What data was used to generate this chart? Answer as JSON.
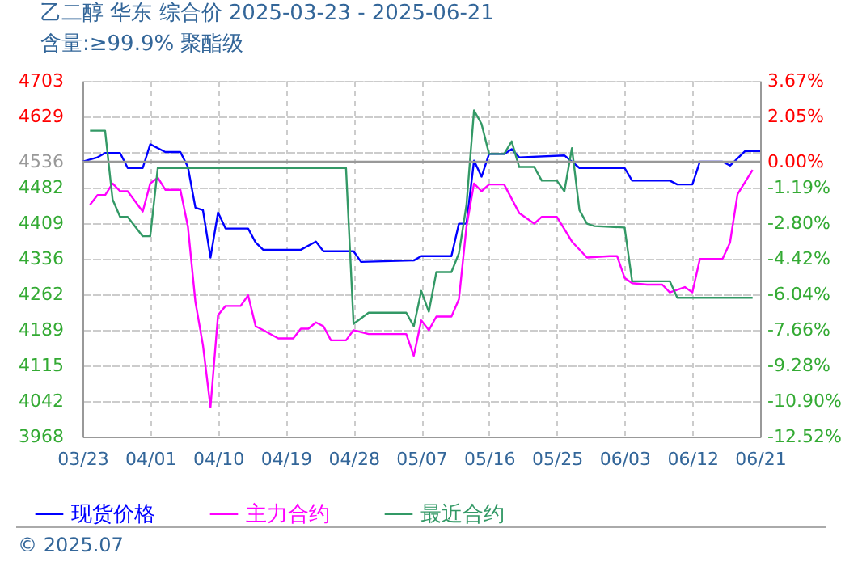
{
  "chart_data": {
    "type": "line",
    "title": "乙二醇 华东 综合价 2025-03-23 - 2025-06-21",
    "subtitle": "含量:≥99.9% 聚酯级",
    "series": [
      {
        "name": "现货价格",
        "color": "#0000ff",
        "x": [
          "2025-03-23",
          "2025-03-25",
          "2025-03-26",
          "2025-03-28",
          "2025-03-29",
          "2025-03-31",
          "2025-04-01",
          "2025-04-03",
          "2025-04-05",
          "2025-04-06",
          "2025-04-07",
          "2025-04-08",
          "2025-04-09",
          "2025-04-10",
          "2025-04-11",
          "2025-04-14",
          "2025-04-15",
          "2025-04-16",
          "2025-04-21",
          "2025-04-23",
          "2025-04-24",
          "2025-04-28",
          "2025-04-29",
          "2025-05-06",
          "2025-05-07",
          "2025-05-11",
          "2025-05-12",
          "2025-05-13",
          "2025-05-14",
          "2025-05-15",
          "2025-05-16",
          "2025-05-18",
          "2025-05-19",
          "2025-05-20",
          "2025-05-26",
          "2025-05-28",
          "2025-06-03",
          "2025-06-04",
          "2025-06-09",
          "2025-06-10",
          "2025-06-12",
          "2025-06-13",
          "2025-06-16",
          "2025-06-17",
          "2025-06-19",
          "2025-06-21"
        ],
        "values": [
          4536,
          4545,
          4554,
          4554,
          4523,
          4523,
          4572,
          4556,
          4556,
          4525,
          4441,
          4436,
          4338,
          4431,
          4398,
          4398,
          4369,
          4354,
          4354,
          4371,
          4351,
          4351,
          4329,
          4332,
          4341,
          4341,
          4408,
          4408,
          4538,
          4505,
          4552,
          4552,
          4562,
          4545,
          4549,
          4523,
          4523,
          4497,
          4497,
          4489,
          4489,
          4536,
          4536,
          4528,
          4558,
          4558
        ]
      },
      {
        "name": "主力合约",
        "color": "#ff00ff",
        "x": [
          "2025-03-24",
          "2025-03-25",
          "2025-03-26",
          "2025-03-27",
          "2025-03-28",
          "2025-03-29",
          "2025-03-31",
          "2025-04-01",
          "2025-04-02",
          "2025-04-03",
          "2025-04-05",
          "2025-04-06",
          "2025-04-07",
          "2025-04-08",
          "2025-04-09",
          "2025-04-10",
          "2025-04-11",
          "2025-04-13",
          "2025-04-14",
          "2025-04-15",
          "2025-04-16",
          "2025-04-18",
          "2025-04-20",
          "2025-04-21",
          "2025-04-22",
          "2025-04-23",
          "2025-04-24",
          "2025-04-25",
          "2025-04-27",
          "2025-04-28",
          "2025-04-30",
          "2025-05-05",
          "2025-05-06",
          "2025-05-07",
          "2025-05-08",
          "2025-05-09",
          "2025-05-11",
          "2025-05-12",
          "2025-05-13",
          "2025-05-14",
          "2025-05-15",
          "2025-05-16",
          "2025-05-18",
          "2025-05-20",
          "2025-05-22",
          "2025-05-23",
          "2025-05-25",
          "2025-05-27",
          "2025-05-29",
          "2025-06-01",
          "2025-06-02",
          "2025-06-03",
          "2025-06-04",
          "2025-06-06",
          "2025-06-08",
          "2025-06-09",
          "2025-06-11",
          "2025-06-12",
          "2025-06-13",
          "2025-06-16",
          "2025-06-17",
          "2025-06-18",
          "2025-06-20"
        ],
        "values": [
          4447,
          4467,
          4467,
          4491,
          4475,
          4475,
          4433,
          4491,
          4503,
          4478,
          4478,
          4402,
          4246,
          4157,
          4029,
          4219,
          4238,
          4238,
          4260,
          4196,
          4188,
          4171,
          4171,
          4191,
          4191,
          4204,
          4196,
          4167,
          4167,
          4188,
          4180,
          4180,
          4135,
          4208,
          4188,
          4216,
          4216,
          4252,
          4402,
          4491,
          4475,
          4489,
          4489,
          4430,
          4408,
          4422,
          4422,
          4371,
          4338,
          4341,
          4341,
          4296,
          4285,
          4282,
          4282,
          4266,
          4277,
          4266,
          4335,
          4335,
          4369,
          4469,
          4519
        ]
      },
      {
        "name": "最近合约",
        "color": "#339966",
        "x": [
          "2025-03-24",
          "2025-03-26",
          "2025-03-27",
          "2025-03-28",
          "2025-03-29",
          "2025-03-31",
          "2025-04-01",
          "2025-04-02",
          "2025-04-27",
          "2025-04-28",
          "2025-04-30",
          "2025-05-05",
          "2025-05-06",
          "2025-05-07",
          "2025-05-08",
          "2025-05-09",
          "2025-05-11",
          "2025-05-12",
          "2025-05-13",
          "2025-05-14",
          "2025-05-15",
          "2025-05-16",
          "2025-05-18",
          "2025-05-19",
          "2025-05-20",
          "2025-05-22",
          "2025-05-23",
          "2025-05-25",
          "2025-05-26",
          "2025-05-27",
          "2025-05-28",
          "2025-05-29",
          "2025-05-30",
          "2025-06-03",
          "2025-06-04",
          "2025-06-09",
          "2025-06-10",
          "2025-06-20"
        ],
        "values": [
          4600,
          4600,
          4458,
          4422,
          4422,
          4382,
          4382,
          4523,
          4523,
          4201,
          4224,
          4224,
          4196,
          4269,
          4226,
          4308,
          4308,
          4347,
          4447,
          4642,
          4614,
          4552,
          4552,
          4578,
          4525,
          4525,
          4497,
          4497,
          4475,
          4564,
          4436,
          4408,
          4403,
          4400,
          4289,
          4289,
          4255,
          4255
        ]
      }
    ],
    "xlim": [
      "2025-03-23",
      "2025-06-21"
    ],
    "xticks": [
      {
        "value": "2025-03-23",
        "label": "03/23"
      },
      {
        "value": "2025-04-01",
        "label": "04/01"
      },
      {
        "value": "2025-04-10",
        "label": "04/10"
      },
      {
        "value": "2025-04-19",
        "label": "04/19"
      },
      {
        "value": "2025-04-28",
        "label": "04/28"
      },
      {
        "value": "2025-05-07",
        "label": "05/07"
      },
      {
        "value": "2025-05-16",
        "label": "05/16"
      },
      {
        "value": "2025-05-25",
        "label": "05/25"
      },
      {
        "value": "2025-06-03",
        "label": "06/03"
      },
      {
        "value": "2025-06-12",
        "label": "06/12"
      },
      {
        "value": "2025-06-21",
        "label": "06/21"
      }
    ],
    "ylim": [
      3968,
      4703
    ],
    "yticks": [
      4703,
      4629,
      {
        "value": 4556,
        "label": null
      },
      4536,
      4482,
      4409,
      4336,
      4262,
      4189,
      4115,
      4042,
      3968
    ],
    "y2lim": [
      -12.52,
      3.67
    ],
    "y2ticks": [
      {
        "value": 3.67,
        "label": "3.67%"
      },
      {
        "value": 2.05,
        "label": "2.05%"
      },
      {
        "value": 0.44,
        "label": null
      },
      {
        "value": 0,
        "label": "0.00%"
      },
      {
        "value": -1.19,
        "label": "-1.19%"
      },
      {
        "value": -2.8,
        "label": "-2.80%"
      },
      {
        "value": -4.42,
        "label": "-4.42%"
      },
      {
        "value": -6.04,
        "label": "-6.04%"
      },
      {
        "value": -7.66,
        "label": "-7.66%"
      },
      {
        "value": -9.28,
        "label": "-9.28%"
      },
      {
        "value": -10.9,
        "label": "-10.90%"
      },
      {
        "value": -12.52,
        "label": "-12.52%"
      }
    ],
    "ref_lines": [
      {
        "axis": "y",
        "value": 4536,
        "color": "#999999"
      }
    ],
    "annotations": [
      "© 2025.07"
    ],
    "grid": true,
    "legend": "bottom",
    "marker": "none",
    "line_style": "solid"
  }
}
